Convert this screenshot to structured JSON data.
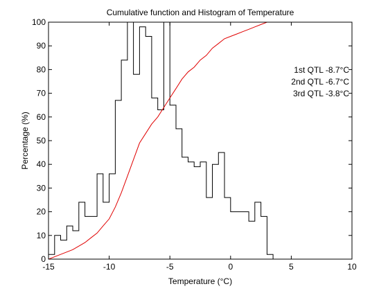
{
  "chart_data": {
    "type": "line",
    "title": "Cumulative function and Histogram of Temperature",
    "xlabel": "Temperature (°C)",
    "ylabel": "Percentage (%)",
    "xlim": [
      -15,
      10
    ],
    "ylim": [
      0,
      100
    ],
    "xticks": [
      -15,
      -10,
      -5,
      0,
      5,
      10
    ],
    "yticks": [
      0,
      10,
      20,
      30,
      40,
      50,
      60,
      70,
      80,
      90,
      100
    ],
    "grid": false,
    "series": [
      {
        "kind": "histogram-stairs",
        "color": "#000000",
        "x": [
          -15,
          -14.5,
          -14,
          -13.5,
          -13,
          -12.5,
          -12,
          -11.5,
          -11,
          -10.5,
          -10,
          -9.5,
          -9,
          -8.5,
          -8,
          -7.5,
          -7,
          -6.5,
          -6,
          -5.5,
          -5,
          -4.5,
          -4,
          -3.5,
          -3,
          -2.5,
          -2,
          -1.5,
          -1,
          -0.5,
          0,
          0.5,
          1,
          1.5,
          2,
          2.5,
          3,
          3.5
        ],
        "values": [
          2,
          10,
          8,
          14,
          12,
          24,
          18,
          18,
          36,
          24,
          36,
          67,
          84,
          100,
          78,
          98,
          94,
          68,
          63,
          100,
          65,
          55,
          43,
          41,
          39,
          41,
          26,
          40,
          45,
          26,
          20,
          20,
          20,
          16,
          24,
          18,
          2,
          0
        ]
      },
      {
        "kind": "cumulative-line",
        "color": "#e00000",
        "x": [
          -15,
          -14,
          -13,
          -12,
          -11.5,
          -11,
          -10.5,
          -10,
          -9.5,
          -9,
          -8.5,
          -8,
          -7.5,
          -7,
          -6.5,
          -6,
          -5.5,
          -5,
          -4.5,
          -4,
          -3.5,
          -3,
          -2.5,
          -2,
          -1.5,
          -1,
          -0.5,
          0,
          0.5,
          1,
          1.5,
          2,
          2.5,
          3,
          10
        ],
        "values": [
          0,
          2,
          4,
          7,
          9,
          11,
          14,
          17,
          22,
          28,
          35,
          42,
          49,
          53,
          57,
          60,
          64,
          68,
          72,
          76,
          79,
          81,
          84,
          86,
          89,
          91,
          93,
          94,
          95,
          96,
          97,
          98,
          99,
          100,
          100
        ]
      }
    ],
    "annotations": [
      {
        "text": "1st QTL -8.7°C",
        "color": "#e00000"
      },
      {
        "text": "2nd QTL -6.7°C",
        "color": "#e00000"
      },
      {
        "text": "3rd QTL -3.8°C",
        "color": "#e00000"
      }
    ]
  }
}
